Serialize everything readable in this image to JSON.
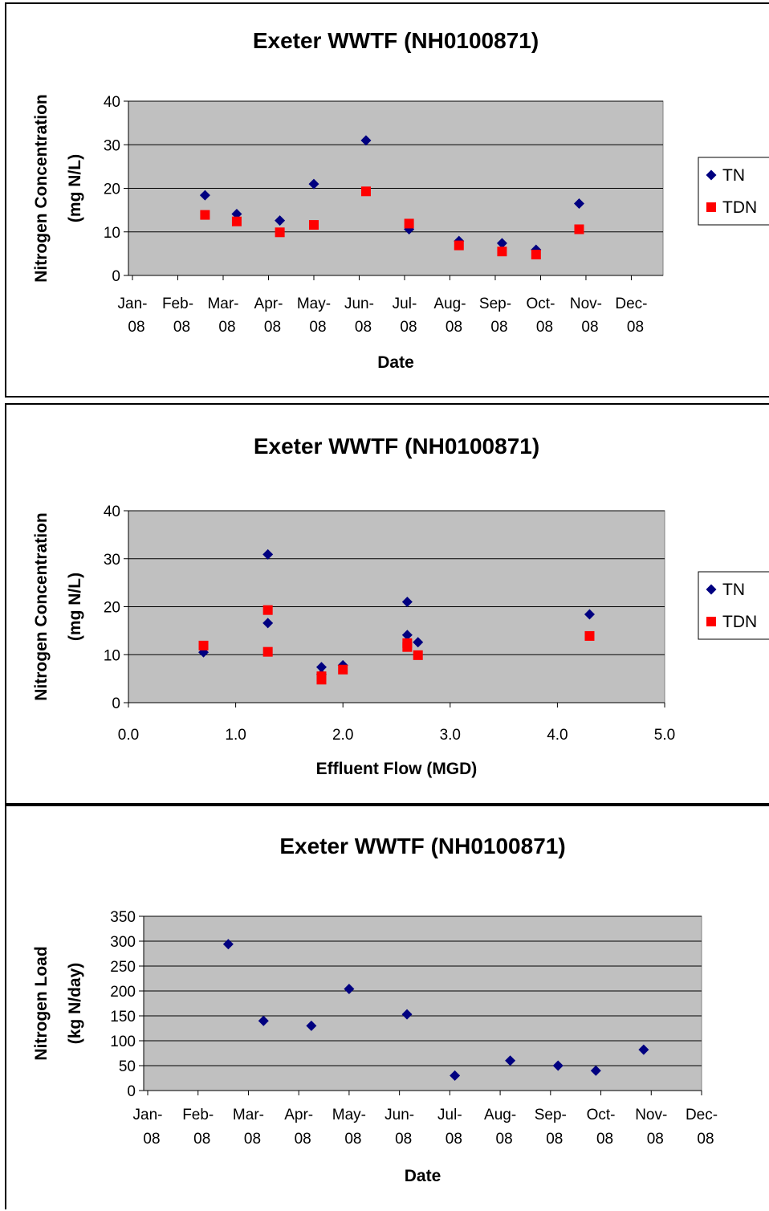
{
  "chart_data": [
    {
      "type": "scatter",
      "title": "Exeter WWTF (NH0100871)",
      "xlabel": "Date",
      "ylabel_lines": [
        "Nitrogen Concentration",
        "(mg N/L)"
      ],
      "ylim": [
        0,
        40
      ],
      "yticks": [
        "0",
        "10",
        "20",
        "30",
        "40"
      ],
      "x_tick_labels": [
        [
          "Jan-",
          "08"
        ],
        [
          "Feb-",
          "08"
        ],
        [
          "Mar-",
          "08"
        ],
        [
          "Apr-",
          "08"
        ],
        [
          "May-",
          "08"
        ],
        [
          "Jun-",
          "08"
        ],
        [
          "Jul-",
          "08"
        ],
        [
          "Aug-",
          "08"
        ],
        [
          "Sep-",
          "08"
        ],
        [
          "Oct-",
          "08"
        ],
        [
          "Nov-",
          "08"
        ],
        [
          "Dec-",
          "08"
        ]
      ],
      "x_units": "months since Jan-08",
      "xlim": [
        0,
        11.7
      ],
      "grid": true,
      "legend": "right",
      "series": [
        {
          "name": "TN",
          "marker": "diamond",
          "color": "#000080",
          "points": [
            [
              1.6,
              18.4
            ],
            [
              2.3,
              14.1
            ],
            [
              3.25,
              12.6
            ],
            [
              4.0,
              21.0
            ],
            [
              5.15,
              31.0
            ],
            [
              6.1,
              10.6
            ],
            [
              7.2,
              7.9
            ],
            [
              8.15,
              7.4
            ],
            [
              8.9,
              5.9
            ],
            [
              9.85,
              16.5
            ]
          ]
        },
        {
          "name": "TDN",
          "marker": "square",
          "color": "#ff0000",
          "points": [
            [
              1.6,
              13.9
            ],
            [
              2.3,
              12.4
            ],
            [
              3.25,
              9.9
            ],
            [
              4.0,
              11.6
            ],
            [
              5.15,
              19.3
            ],
            [
              6.1,
              11.9
            ],
            [
              7.2,
              6.9
            ],
            [
              8.15,
              5.5
            ],
            [
              8.9,
              4.8
            ],
            [
              9.85,
              10.6
            ]
          ]
        }
      ]
    },
    {
      "type": "scatter",
      "title": "Exeter WWTF (NH0100871)",
      "xlabel": "Effluent Flow (MGD)",
      "ylabel_lines": [
        "Nitrogen Concentration",
        "(mg N/L)"
      ],
      "ylim": [
        0,
        40
      ],
      "yticks": [
        "0",
        "10",
        "20",
        "30",
        "40"
      ],
      "xlim": [
        0,
        5
      ],
      "x_tick_labels": [
        [
          "0.0"
        ],
        [
          "1.0"
        ],
        [
          "2.0"
        ],
        [
          "3.0"
        ],
        [
          "4.0"
        ],
        [
          "5.0"
        ]
      ],
      "grid": true,
      "legend": "right",
      "series": [
        {
          "name": "TN",
          "marker": "diamond",
          "color": "#000080",
          "points": [
            [
              0.7,
              10.5
            ],
            [
              1.3,
              30.9
            ],
            [
              1.3,
              16.6
            ],
            [
              1.8,
              7.4
            ],
            [
              1.8,
              5.9
            ],
            [
              2.0,
              7.8
            ],
            [
              2.6,
              21.0
            ],
            [
              2.6,
              14.1
            ],
            [
              2.7,
              12.6
            ],
            [
              4.3,
              18.4
            ]
          ]
        },
        {
          "name": "TDN",
          "marker": "square",
          "color": "#ff0000",
          "points": [
            [
              0.7,
              11.9
            ],
            [
              1.3,
              19.3
            ],
            [
              1.3,
              10.6
            ],
            [
              1.8,
              5.5
            ],
            [
              1.8,
              4.8
            ],
            [
              2.0,
              6.9
            ],
            [
              2.6,
              12.4
            ],
            [
              2.6,
              11.6
            ],
            [
              2.7,
              9.9
            ],
            [
              4.3,
              13.9
            ]
          ]
        }
      ]
    },
    {
      "type": "scatter",
      "title": "Exeter WWTF (NH0100871)",
      "xlabel": "Date",
      "ylabel_lines": [
        "Nitrogen Load",
        "(kg N/day)"
      ],
      "ylim": [
        0,
        350
      ],
      "yticks": [
        "0",
        "50",
        "100",
        "150",
        "200",
        "250",
        "300",
        "350"
      ],
      "x_tick_labels": [
        [
          "Jan-",
          "08"
        ],
        [
          "Feb-",
          "08"
        ],
        [
          "Mar-",
          "08"
        ],
        [
          "Apr-",
          "08"
        ],
        [
          "May-",
          "08"
        ],
        [
          "Jun-",
          "08"
        ],
        [
          "Jul-",
          "08"
        ],
        [
          "Aug-",
          "08"
        ],
        [
          "Sep-",
          "08"
        ],
        [
          "Oct-",
          "08"
        ],
        [
          "Nov-",
          "08"
        ],
        [
          "Dec-",
          "08"
        ]
      ],
      "x_units": "months since Jan-08",
      "xlim": [
        0,
        11
      ],
      "grid": true,
      "legend": "none",
      "series": [
        {
          "marker": "diamond",
          "color": "#000080",
          "points": [
            [
              1.6,
              294
            ],
            [
              2.3,
              140
            ],
            [
              3.25,
              130
            ],
            [
              4.0,
              204
            ],
            [
              5.15,
              153
            ],
            [
              6.1,
              30
            ],
            [
              7.2,
              60
            ],
            [
              8.15,
              50
            ],
            [
              8.9,
              40
            ],
            [
              9.85,
              82
            ]
          ]
        }
      ]
    }
  ]
}
